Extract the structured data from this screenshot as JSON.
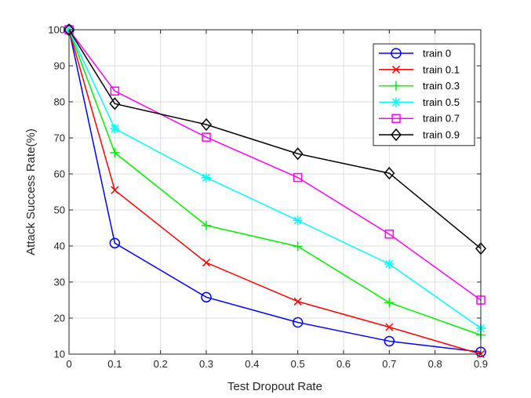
{
  "chart_data": {
    "type": "line",
    "title": "",
    "xlabel": "Test Dropout Rate",
    "ylabel": "Attack Success Rate(%)",
    "xlim": [
      0,
      0.9
    ],
    "ylim": [
      10,
      100
    ],
    "xticks": [
      0,
      0.1,
      0.2,
      0.3,
      0.4,
      0.5,
      0.6,
      0.7,
      0.8,
      0.9
    ],
    "xtick_labels": [
      "0",
      "0.1",
      "0.2",
      "0.3",
      "0.4",
      "0.5",
      "0.6",
      "0.7",
      "0.8",
      "0.9"
    ],
    "yticks": [
      10,
      20,
      30,
      40,
      50,
      60,
      70,
      80,
      90,
      100
    ],
    "ytick_labels": [
      "10",
      "20",
      "30",
      "40",
      "50",
      "60",
      "70",
      "80",
      "90",
      "100"
    ],
    "grid": true,
    "legend_position": "top-right",
    "x": [
      0,
      0.1,
      0.3,
      0.5,
      0.7,
      0.9
    ],
    "series": [
      {
        "name": "train 0",
        "color": "#0000ff",
        "marker": "circle",
        "values": [
          100,
          40.8,
          25.8,
          18.8,
          13.6,
          10.6
        ]
      },
      {
        "name": "train 0.1",
        "color": "#ff0000",
        "marker": "x",
        "values": [
          100,
          55.5,
          35.4,
          24.6,
          17.5,
          10.0
        ]
      },
      {
        "name": "train 0.3",
        "color": "#00ee00",
        "marker": "plus",
        "values": [
          100,
          65.9,
          45.7,
          39.9,
          24.3,
          15.3
        ]
      },
      {
        "name": "train 0.5",
        "color": "#00ffff",
        "marker": "asterisk",
        "values": [
          100,
          72.6,
          59.0,
          47.1,
          35.0,
          17.2
        ]
      },
      {
        "name": "train 0.7",
        "color": "#ff00ff",
        "marker": "square",
        "values": [
          100,
          83.0,
          70.2,
          59.0,
          43.3,
          25.0
        ]
      },
      {
        "name": "train 0.9",
        "color": "#000000",
        "marker": "diamond",
        "values": [
          100,
          79.5,
          73.7,
          65.6,
          60.2,
          39.3
        ]
      }
    ]
  }
}
